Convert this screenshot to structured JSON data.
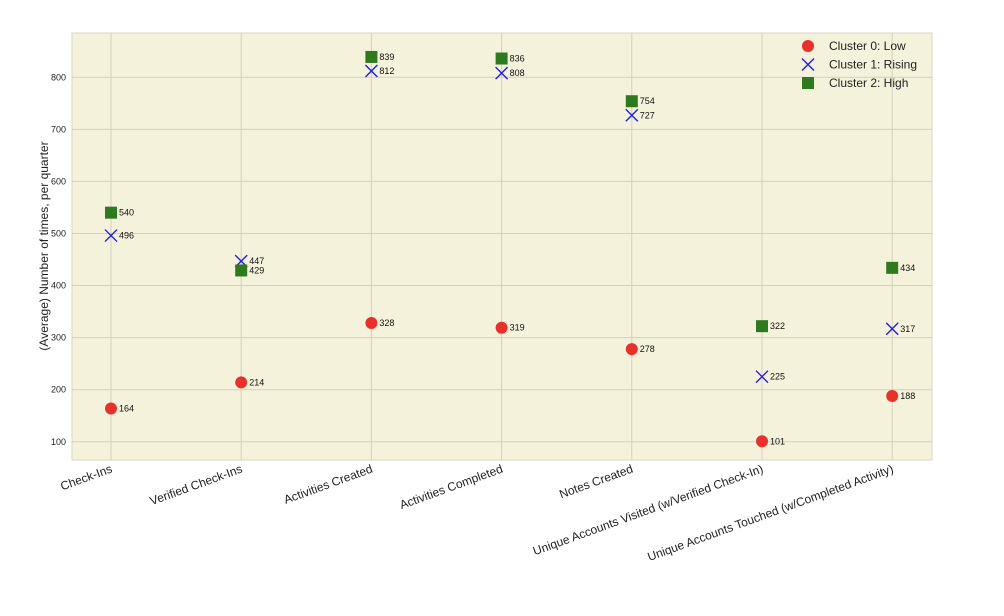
{
  "chart_data": {
    "type": "scatter",
    "title": "",
    "xlabel": "",
    "ylabel": "(Average) Number of times, per quarter",
    "ylim": [
      65,
      885
    ],
    "yticks": [
      100,
      200,
      300,
      400,
      500,
      600,
      700,
      800
    ],
    "grid": true,
    "legend_position": "top-right",
    "background": "#f5f2dc",
    "categories": [
      "Check-Ins",
      "Verified Check-Ins",
      "Activities Created",
      "Activities Completed",
      "Notes Created",
      "Unique Accounts Visited (w/Verified Check-In)",
      "Unique Accounts Touched (w/Completed Activity)"
    ],
    "series": [
      {
        "name": "Cluster 0: Low",
        "marker": "circle",
        "color": "#e8312a",
        "values": [
          164,
          214,
          328,
          319,
          278,
          101,
          188
        ]
      },
      {
        "name": "Cluster 1: Rising",
        "marker": "x",
        "color": "#2020e0",
        "values": [
          496,
          447,
          812,
          808,
          727,
          225,
          317
        ]
      },
      {
        "name": "Cluster 2: High",
        "marker": "square",
        "color": "#2f7a1f",
        "values": [
          540,
          429,
          839,
          836,
          754,
          322,
          434
        ]
      }
    ]
  }
}
